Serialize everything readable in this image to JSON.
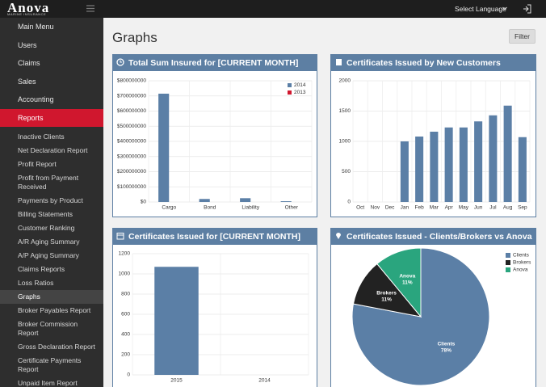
{
  "topbar": {
    "logo": "Anova",
    "logo_sub": "MARINE INSURANCE",
    "language": "Select Language"
  },
  "sidebar": {
    "menu": [
      "Main Menu",
      "Users",
      "Claims",
      "Sales",
      "Accounting",
      "Reports"
    ],
    "submenu": [
      "Inactive Clients",
      "Net Declaration Report",
      "Profit Report",
      "Profit from Payment Received",
      "Payments by Product",
      "Billing Statements",
      "Customer Ranking",
      "A/R Aging Summary",
      "A/P Aging Summary",
      "Claims Reports",
      "Loss Ratios",
      "Graphs",
      "Broker Payables Report",
      "Broker Commission Report",
      "Gross Declaration Report",
      "Certificate Payments Report",
      "Unpaid Item Report"
    ]
  },
  "page": {
    "title": "Graphs",
    "filter": "Filter"
  },
  "chart_data": [
    {
      "type": "bar",
      "title": "Total Sum Insured for [CURRENT MONTH]",
      "categories": [
        "Cargo",
        "Bond",
        "Liability",
        "Other"
      ],
      "series": [
        {
          "name": "2014",
          "color": "#5b7fa6",
          "values": [
            715000000,
            20000000,
            25000000,
            5000000
          ]
        },
        {
          "name": "2013",
          "color": "#d0172e",
          "values": [
            0,
            0,
            0,
            0
          ]
        }
      ],
      "ylim": [
        0,
        800000000
      ],
      "yticks": [
        {
          "value": 0,
          "label": "$0"
        },
        {
          "value": 100000000,
          "label": "$100000000"
        },
        {
          "value": 200000000,
          "label": "$200000000"
        },
        {
          "value": 300000000,
          "label": "$300000000"
        },
        {
          "value": 400000000,
          "label": "$400000000"
        },
        {
          "value": 500000000,
          "label": "$500000000"
        },
        {
          "value": 600000000,
          "label": "$600000000"
        },
        {
          "value": 700000000,
          "label": "$700000000"
        },
        {
          "value": 800000000,
          "label": "$800000000"
        }
      ],
      "grid": true,
      "legend": "top-right"
    },
    {
      "type": "bar",
      "title": "Certificates Issued by New Customers",
      "categories": [
        "Oct",
        "Nov",
        "Dec",
        "Jan",
        "Feb",
        "Mar",
        "Apr",
        "May",
        "Jun",
        "Jul",
        "Aug",
        "Sep"
      ],
      "values": [
        0,
        0,
        0,
        1000,
        1080,
        1160,
        1230,
        1230,
        1330,
        1430,
        1590,
        1070
      ],
      "color": "#5b7fa6",
      "ylim": [
        0,
        2000
      ],
      "yticks": [
        0,
        500,
        1000,
        1500,
        2000
      ],
      "grid": true
    },
    {
      "type": "bar",
      "title": "Certificates Issued for [CURRENT MONTH]",
      "categories": [
        "2015",
        "2014"
      ],
      "values": [
        1070,
        0
      ],
      "color": "#5b7fa6",
      "ylim": [
        0,
        1200
      ],
      "yticks": [
        0,
        200,
        400,
        600,
        800,
        1000,
        1200
      ],
      "grid": true
    },
    {
      "type": "pie",
      "title": "Certificates Issued - Clients/Brokers vs Anova",
      "categories": [
        "Clients",
        "Brokers",
        "Anova"
      ],
      "values": [
        78,
        11,
        11
      ],
      "value_labels": [
        "78%",
        "11%",
        "11%"
      ],
      "colors": [
        "#5b7fa6",
        "#222222",
        "#2aa57e"
      ],
      "legend": "top-right"
    }
  ]
}
